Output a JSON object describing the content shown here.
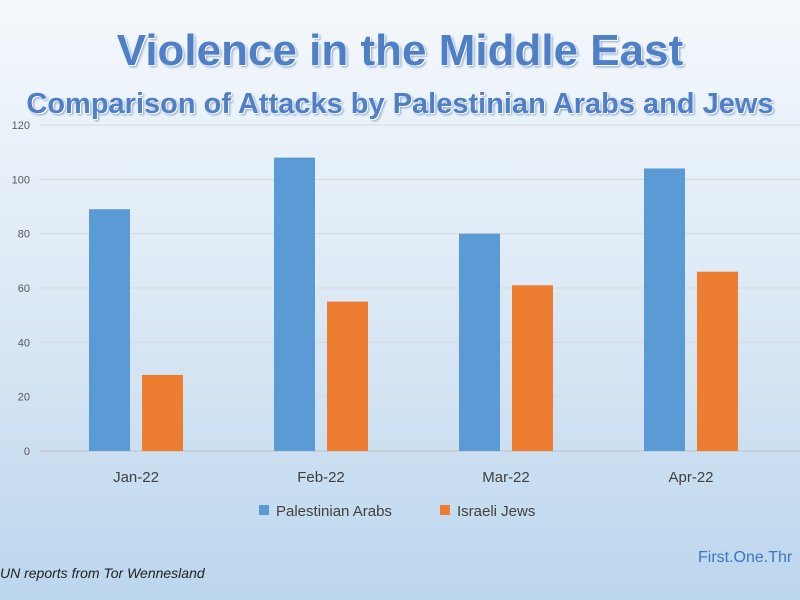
{
  "title": "Violence in the Middle East",
  "subtitle": "Comparison of Attacks by Palestinian Arabs and Jews",
  "source": "UN reports from Tor Wennesland",
  "site": "First.One.Thr",
  "chart_data": {
    "type": "bar",
    "title": "Violence in the Middle East",
    "subtitle": "Comparison of Attacks by Palestinian Arabs and Jews",
    "categories": [
      "Jan-22",
      "Feb-22",
      "Mar-22",
      "Apr-22"
    ],
    "series": [
      {
        "name": "Palestinian Arabs",
        "values": [
          89,
          108,
          80,
          104
        ],
        "color": "#5b9bd5"
      },
      {
        "name": "Israeli Jews",
        "values": [
          28,
          55,
          61,
          66
        ],
        "color": "#ed7d31"
      }
    ],
    "ylim": [
      0,
      120
    ],
    "yticks": [
      0,
      20,
      40,
      60,
      80,
      100,
      120
    ],
    "grid": true,
    "legend": "bottom"
  }
}
